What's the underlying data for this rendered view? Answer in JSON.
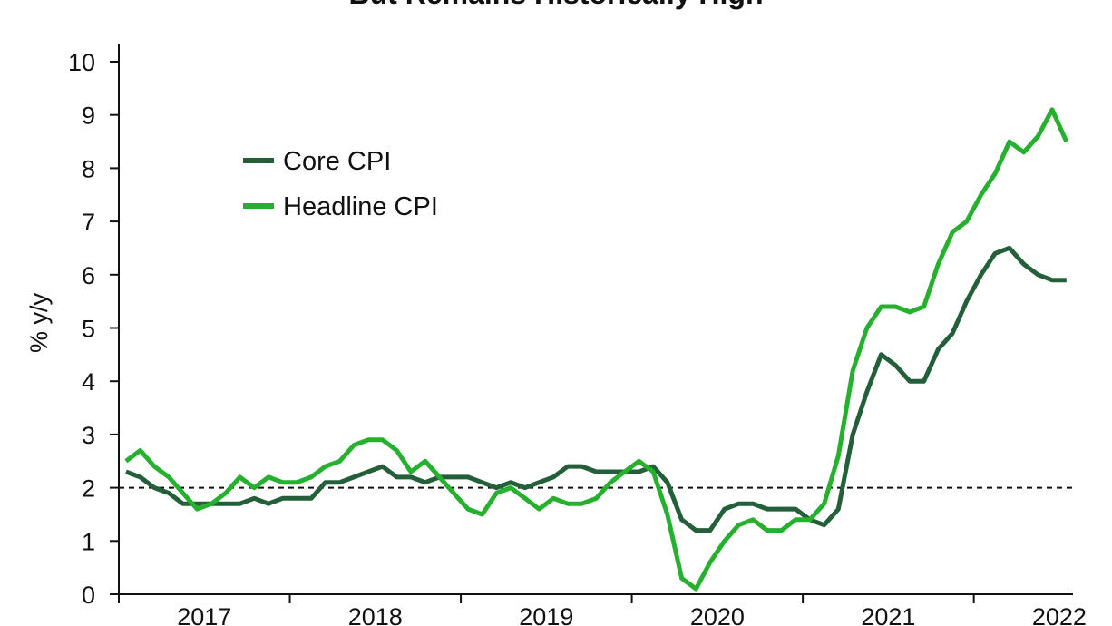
{
  "chart_data": {
    "type": "line",
    "title": "But Remains Historically High",
    "y_label": "% y/y",
    "x": [
      2017.042,
      2017.125,
      2017.208,
      2017.292,
      2017.375,
      2017.458,
      2017.542,
      2017.625,
      2017.708,
      2017.792,
      2017.875,
      2017.958,
      2018.042,
      2018.125,
      2018.208,
      2018.292,
      2018.375,
      2018.458,
      2018.542,
      2018.625,
      2018.708,
      2018.792,
      2018.875,
      2018.958,
      2019.042,
      2019.125,
      2019.208,
      2019.292,
      2019.375,
      2019.458,
      2019.542,
      2019.625,
      2019.708,
      2019.792,
      2019.875,
      2019.958,
      2020.042,
      2020.125,
      2020.208,
      2020.292,
      2020.375,
      2020.458,
      2020.542,
      2020.625,
      2020.708,
      2020.792,
      2020.875,
      2020.958,
      2021.042,
      2021.125,
      2021.208,
      2021.292,
      2021.375,
      2021.458,
      2021.542,
      2021.625,
      2021.708,
      2021.792,
      2021.875,
      2021.958,
      2022.042,
      2022.125,
      2022.208,
      2022.292,
      2022.375,
      2022.458,
      2022.542
    ],
    "series": [
      {
        "name": "Core CPI",
        "color": "#23603a",
        "values": [
          2.3,
          2.2,
          2.0,
          1.9,
          1.7,
          1.7,
          1.7,
          1.7,
          1.7,
          1.8,
          1.7,
          1.8,
          1.8,
          1.8,
          2.1,
          2.1,
          2.2,
          2.3,
          2.4,
          2.2,
          2.2,
          2.1,
          2.2,
          2.2,
          2.2,
          2.1,
          2.0,
          2.1,
          2.0,
          2.1,
          2.2,
          2.4,
          2.4,
          2.3,
          2.3,
          2.3,
          2.3,
          2.4,
          2.1,
          1.4,
          1.2,
          1.2,
          1.6,
          1.7,
          1.7,
          1.6,
          1.6,
          1.6,
          1.4,
          1.3,
          1.6,
          3.0,
          3.8,
          4.5,
          4.3,
          4.0,
          4.0,
          4.6,
          4.9,
          5.5,
          6.0,
          6.4,
          6.5,
          6.2,
          6.0,
          5.9,
          5.9
        ]
      },
      {
        "name": "Headline CPI",
        "color": "#25b02d",
        "values": [
          2.5,
          2.7,
          2.4,
          2.2,
          1.9,
          1.6,
          1.7,
          1.9,
          2.2,
          2.0,
          2.2,
          2.1,
          2.1,
          2.2,
          2.4,
          2.5,
          2.8,
          2.9,
          2.9,
          2.7,
          2.3,
          2.5,
          2.2,
          1.9,
          1.6,
          1.5,
          1.9,
          2.0,
          1.8,
          1.6,
          1.8,
          1.7,
          1.7,
          1.8,
          2.1,
          2.3,
          2.5,
          2.3,
          1.5,
          0.3,
          0.1,
          0.6,
          1.0,
          1.3,
          1.4,
          1.2,
          1.2,
          1.4,
          1.4,
          1.7,
          2.6,
          4.2,
          5.0,
          5.4,
          5.4,
          5.3,
          5.4,
          6.2,
          6.8,
          7.0,
          7.5,
          7.9,
          8.5,
          8.3,
          8.6,
          9.1,
          8.5
        ]
      }
    ],
    "xlim": [
      2017,
      2022.58
    ],
    "xticks": [
      2017,
      2018,
      2019,
      2020,
      2021,
      2022
    ],
    "ylim": [
      0,
      10
    ],
    "yticks": [
      0,
      1,
      2,
      3,
      4,
      5,
      6,
      7,
      8,
      9,
      10
    ],
    "reference_line": 2,
    "legend": "upper-left"
  }
}
